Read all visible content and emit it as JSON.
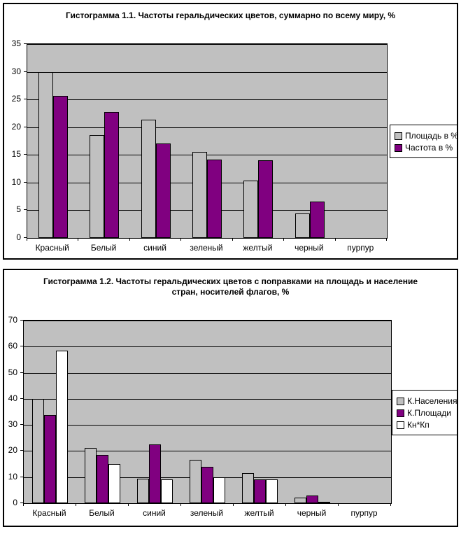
{
  "page": {
    "background": "#ffffff"
  },
  "colors": {
    "plot_background": "#c0c0c0",
    "series_gray": "#c0c0c0",
    "series_purple": "#800080",
    "series_white": "#ffffff",
    "border": "#000000"
  },
  "chart_data": [
    {
      "type": "bar",
      "title": "Гистограмма 1.1. Частоты геральдических цветов, суммарно по всему миру, %",
      "categories": [
        "Красный",
        "Белый",
        "синий",
        "зеленый",
        "желтый",
        "черный",
        "пурпур"
      ],
      "series": [
        {
          "name": "Площадь в %",
          "color": "#c0c0c0",
          "values": [
            29.9,
            18.6,
            21.3,
            15.5,
            10.3,
            4.4,
            0
          ]
        },
        {
          "name": "Частота в %",
          "color": "#800080",
          "values": [
            25.6,
            22.7,
            17.0,
            14.2,
            14.0,
            6.6,
            0
          ]
        }
      ],
      "ylim": [
        0,
        35
      ],
      "ytick_step": 5,
      "ytick_labels": [
        "0",
        "5",
        "10",
        "15",
        "20",
        "25",
        "30",
        "35"
      ],
      "grid": true,
      "legend_position": "right",
      "xlabel": "",
      "ylabel": ""
    },
    {
      "type": "bar",
      "title": "Гистограмма 1.2. Частоты геральдических цветов с поправками на площадь и население стран, носителей флагов, %",
      "categories": [
        "Красный",
        "Белый",
        "синий",
        "зеленый",
        "желтый",
        "черный",
        "пурпур"
      ],
      "series": [
        {
          "name": "К.Населения",
          "color": "#c0c0c0",
          "values": [
            39.9,
            21.1,
            9.3,
            16.5,
            11.6,
            2.1,
            0
          ]
        },
        {
          "name": "К.Площади",
          "color": "#800080",
          "values": [
            33.7,
            18.4,
            22.4,
            14.0,
            9.0,
            2.9,
            0
          ]
        },
        {
          "name": "Кн*Кп",
          "color": "#ffffff",
          "values": [
            58.4,
            15.1,
            9.0,
            9.9,
            9.0,
            0.5,
            0
          ]
        }
      ],
      "ylim": [
        0,
        70
      ],
      "ytick_step": 10,
      "ytick_labels": [
        "0",
        "10",
        "20",
        "30",
        "40",
        "50",
        "60",
        "70"
      ],
      "grid": true,
      "legend_position": "right",
      "xlabel": "",
      "ylabel": ""
    }
  ]
}
